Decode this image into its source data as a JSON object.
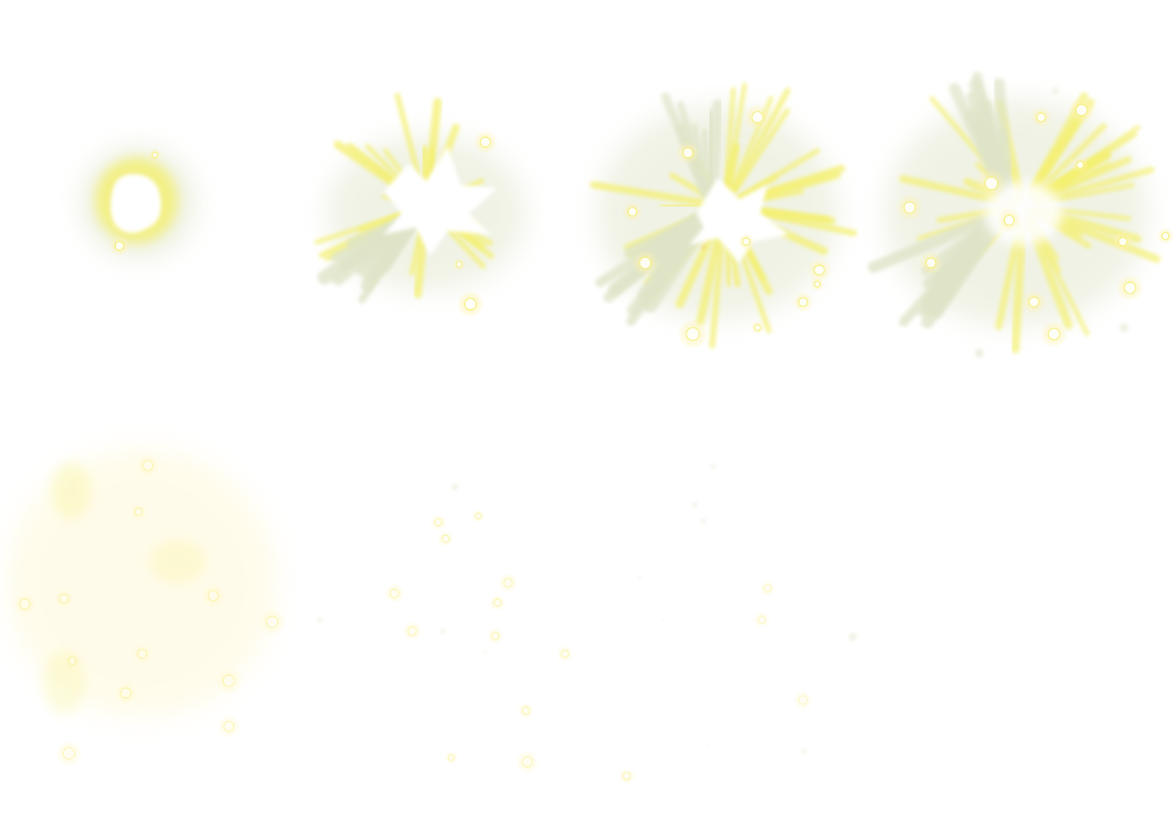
{
  "sprite_sheet": {
    "background": "#ffffff",
    "palette": {
      "core": "#ffffff",
      "glow": "#fff6a8",
      "flame": "#f4f070",
      "smoke": "#dfe4c8",
      "ember": "#fff3b0",
      "spark": "#f0a030"
    },
    "frames": [
      {
        "id": "frame-1",
        "stage": "ignition"
      },
      {
        "id": "frame-2",
        "stage": "burst"
      },
      {
        "id": "frame-3",
        "stage": "expansion"
      },
      {
        "id": "frame-4",
        "stage": "peak"
      },
      {
        "id": "frame-5",
        "stage": "dispersal"
      },
      {
        "id": "frame-6",
        "stage": "sparks"
      },
      {
        "id": "frame-7",
        "stage": "fading"
      },
      {
        "id": "frame-8",
        "stage": "empty"
      }
    ]
  }
}
